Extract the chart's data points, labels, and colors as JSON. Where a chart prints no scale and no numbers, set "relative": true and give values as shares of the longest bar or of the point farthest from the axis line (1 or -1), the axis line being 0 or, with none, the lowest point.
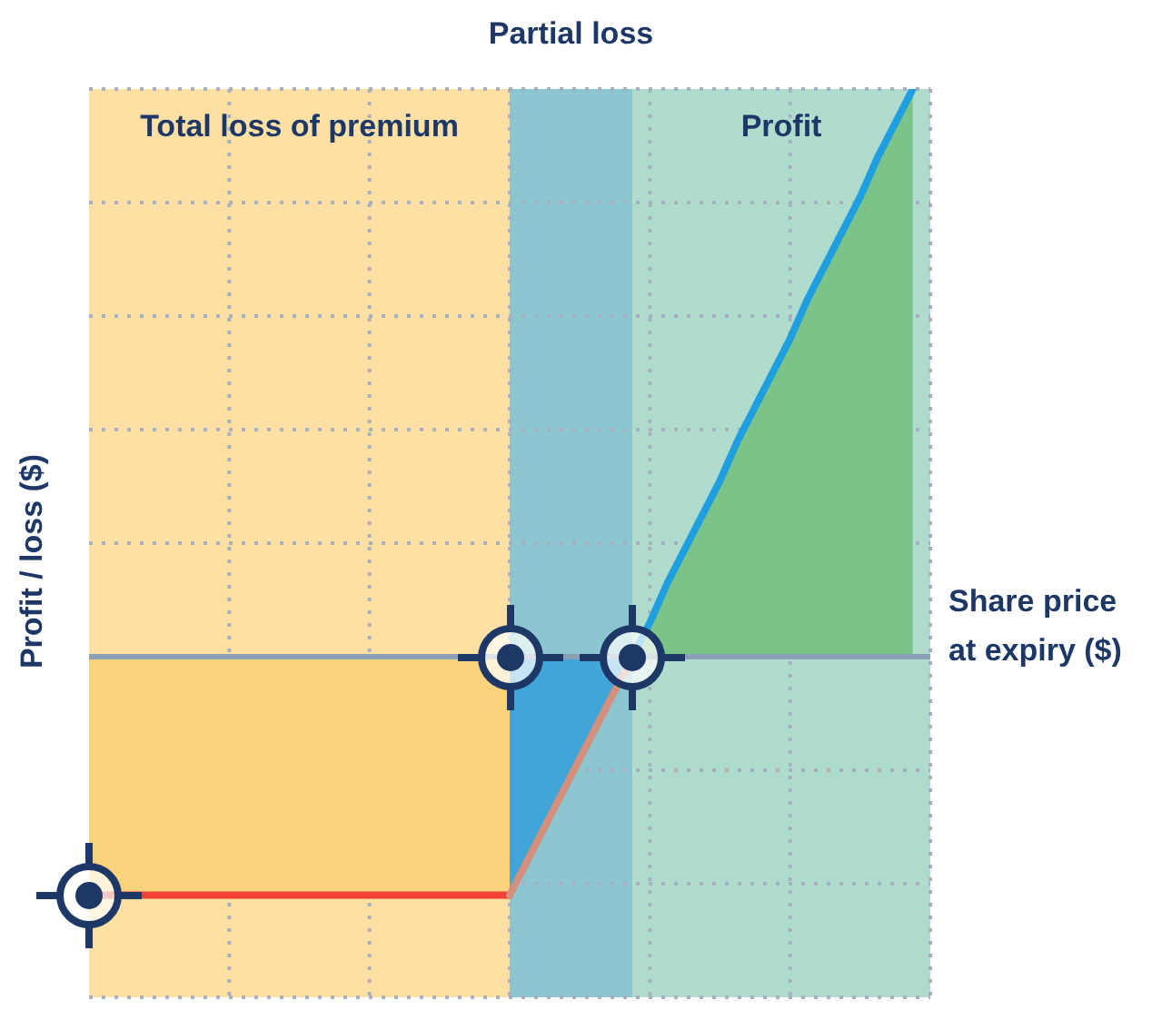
{
  "chart_data": {
    "type": "area",
    "relative": true,
    "xlabel": "Share price at expiry ($)",
    "ylabel": "Profit / loss ($)",
    "annotations": [
      "Total loss of premium",
      "Partial loss",
      "Profit"
    ],
    "categories": [
      null,
      null,
      null,
      null,
      null,
      null,
      null,
      null,
      null,
      null,
      null,
      null,
      null,
      null,
      null,
      null,
      null,
      null,
      null,
      null,
      null,
      null,
      null,
      null,
      null,
      null,
      null,
      null,
      null,
      null,
      null,
      null,
      null,
      null,
      null,
      null,
      null,
      null,
      null,
      null,
      null,
      null,
      null,
      null,
      null,
      null,
      null,
      null,
      null
    ],
    "series": [
      {
        "color": "#fdd27c",
        "values": [
          -0.42,
          -0.42,
          -0.42,
          -0.42,
          -0.42,
          -0.42,
          -0.42,
          -0.42,
          -0.42,
          -0.42,
          -0.42,
          -0.42,
          -0.42,
          -0.42,
          -0.42,
          -0.42,
          -0.42,
          -0.42,
          -0.42,
          -0.42,
          -0.42,
          -0.42,
          -0.42,
          -0.42,
          -0.42,
          null,
          null,
          null,
          null,
          null,
          null,
          null,
          null,
          null,
          null,
          null,
          null,
          null,
          null,
          null,
          null,
          null,
          null,
          null,
          null,
          null,
          null,
          null,
          null
        ]
      },
      {
        "color": "#42a5d8",
        "values": [
          null,
          null,
          null,
          null,
          null,
          null,
          null,
          null,
          null,
          null,
          null,
          null,
          null,
          null,
          null,
          null,
          null,
          null,
          null,
          null,
          null,
          null,
          null,
          null,
          -0.42,
          -0.36,
          -0.3,
          -0.24,
          -0.18,
          -0.12,
          -0.06,
          0,
          null,
          null,
          null,
          null,
          null,
          null,
          null,
          null,
          null,
          null,
          null,
          null,
          null,
          null,
          null,
          null,
          null
        ]
      },
      {
        "color": "#7cc389",
        "values": [
          null,
          null,
          null,
          null,
          null,
          null,
          null,
          null,
          null,
          null,
          null,
          null,
          null,
          null,
          null,
          null,
          null,
          null,
          null,
          null,
          null,
          null,
          null,
          null,
          null,
          null,
          null,
          null,
          null,
          null,
          null,
          0,
          0.06,
          0.13,
          0.19,
          0.25,
          0.31,
          0.38,
          0.44,
          0.5,
          0.56,
          0.63,
          0.69,
          0.75,
          0.81,
          0.88,
          0.94,
          1,
          null
        ]
      }
    ],
    "grid": true
  }
}
